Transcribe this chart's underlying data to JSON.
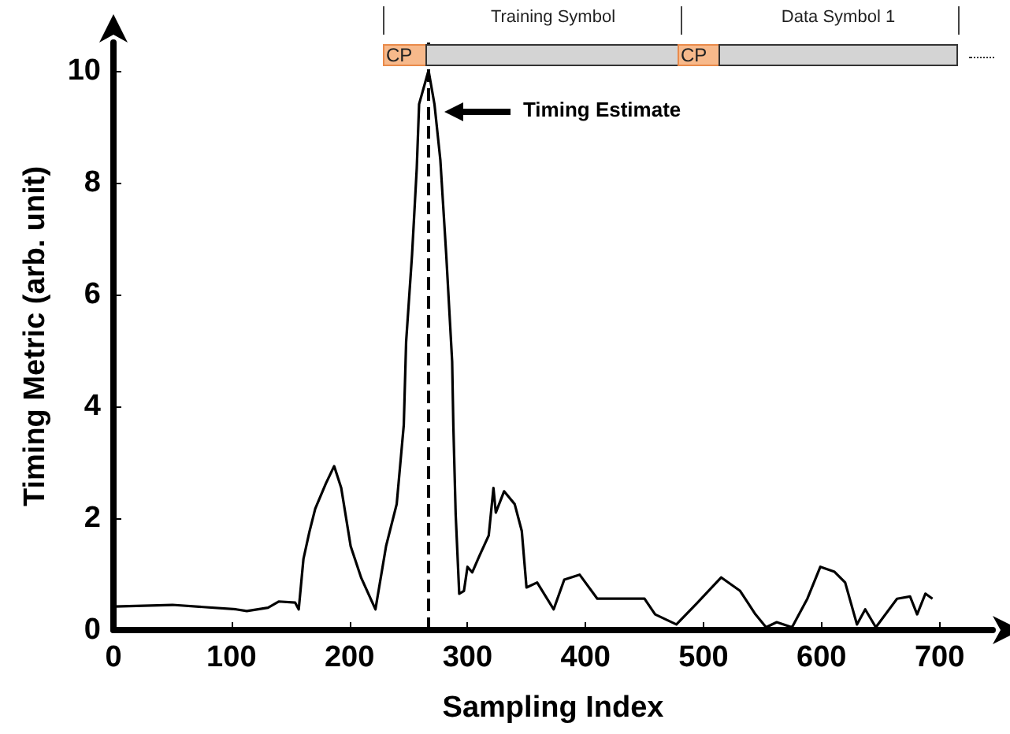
{
  "chart_data": {
    "type": "line",
    "xlabel": "Sampling Index",
    "ylabel": "Timing Metric (arb. unit)",
    "x": [
      1,
      50,
      104,
      113,
      131,
      140,
      154,
      157,
      161,
      166,
      171,
      180,
      187,
      193,
      201,
      210,
      222,
      231,
      240,
      246,
      248,
      253,
      257,
      259,
      267,
      272,
      277,
      282,
      287,
      288,
      290,
      293,
      297,
      300,
      304,
      310,
      318,
      322,
      324,
      331,
      340,
      346,
      350,
      359,
      373,
      382,
      395,
      410,
      431,
      450,
      459,
      477,
      494,
      515,
      531,
      544,
      553,
      562,
      575,
      588,
      599,
      611,
      620,
      630,
      637,
      646,
      664,
      675,
      681,
      688,
      694
    ],
    "values": [
      0.42,
      0.45,
      0.37,
      0.34,
      0.4,
      0.51,
      0.49,
      0.37,
      1.27,
      1.75,
      2.17,
      2.62,
      2.93,
      2.54,
      1.5,
      0.93,
      0.37,
      1.5,
      2.25,
      3.66,
      5.15,
      6.7,
      8.25,
      9.4,
      10.0,
      9.4,
      8.4,
      6.7,
      4.8,
      3.66,
      2.06,
      0.65,
      0.7,
      1.13,
      1.03,
      1.32,
      1.69,
      2.54,
      2.1,
      2.48,
      2.25,
      1.77,
      0.76,
      0.85,
      0.37,
      0.9,
      0.99,
      0.56,
      0.56,
      0.56,
      0.28,
      0.1,
      0.47,
      0.94,
      0.7,
      0.28,
      0.05,
      0.14,
      0.05,
      0.56,
      1.13,
      1.04,
      0.85,
      0.1,
      0.37,
      0.05,
      0.56,
      0.6,
      0.28,
      0.65,
      0.56
    ],
    "color": "#000000",
    "line_style": "solid",
    "marker": "none",
    "grid": false,
    "xlim": [
      0,
      745
    ],
    "xticks": [
      0,
      100,
      200,
      300,
      400,
      500,
      600,
      700
    ],
    "ylim": [
      0,
      10.5
    ],
    "yticks": [
      0,
      2,
      4,
      6,
      8,
      10
    ],
    "ref_lines": [
      {
        "axis": "x",
        "value": 267,
        "label": null,
        "line_style": "dashed",
        "color": "#000000"
      }
    ],
    "annotations": [
      "Timing Estimate",
      "CP",
      "Training Symbol",
      "CP",
      "Data Symbol 1"
    ]
  }
}
